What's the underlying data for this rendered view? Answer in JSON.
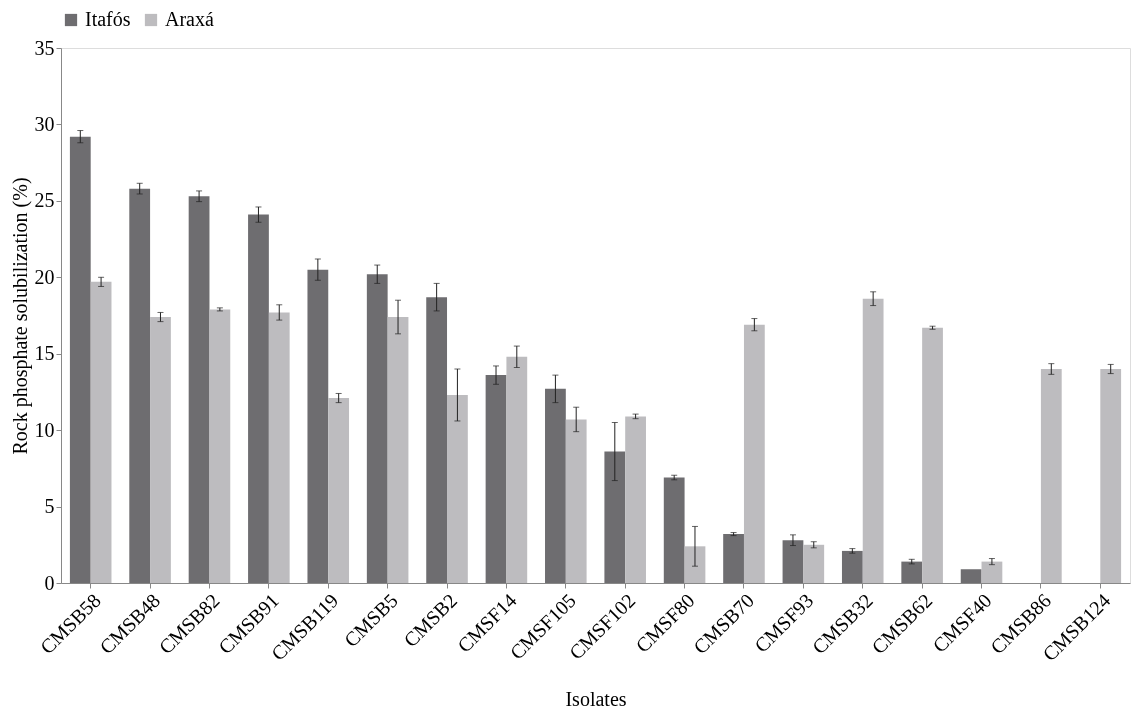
{
  "chart_data": {
    "type": "bar",
    "xlabel": "Isolates",
    "ylabel": "Rock phosphate solubilization (%)",
    "categories": [
      "CMSB58",
      "CMSB48",
      "CMSB82",
      "CMSB91",
      "CMSB119",
      "CMSB5",
      "CMSB2",
      "CMSF14",
      "CMSF105",
      "CMSF102",
      "CMSF80",
      "CMSB70",
      "CMSF93",
      "CMSB32",
      "CMSB62",
      "CMSF40",
      "CMSB86",
      "CMSB124"
    ],
    "series": [
      {
        "name": "Itafós",
        "color": "#6e6d70",
        "values": [
          29.2,
          25.8,
          25.3,
          24.1,
          20.5,
          20.2,
          18.7,
          13.6,
          12.7,
          8.6,
          6.9,
          3.2,
          2.8,
          2.1,
          1.4,
          0.9,
          null,
          null
        ],
        "errors": [
          0.4,
          0.35,
          0.35,
          0.5,
          0.7,
          0.6,
          0.9,
          0.6,
          0.9,
          1.9,
          0.15,
          0.1,
          0.35,
          0.15,
          0.15,
          null,
          null,
          null
        ]
      },
      {
        "name": "Araxá",
        "color": "#bdbcbf",
        "values": [
          19.7,
          17.4,
          17.9,
          17.7,
          12.1,
          17.4,
          12.3,
          14.8,
          10.7,
          10.9,
          2.4,
          16.9,
          2.5,
          18.6,
          16.7,
          1.4,
          14.0,
          14.0
        ],
        "errors": [
          0.3,
          0.3,
          0.1,
          0.5,
          0.3,
          1.1,
          1.7,
          0.7,
          0.8,
          0.15,
          1.3,
          0.4,
          0.2,
          0.45,
          0.1,
          0.2,
          0.35,
          0.3
        ]
      }
    ],
    "ylim": [
      0,
      35
    ],
    "yticks": [
      0,
      5,
      10,
      15,
      20,
      25,
      30,
      35
    ],
    "grid": false,
    "legend": "top"
  }
}
